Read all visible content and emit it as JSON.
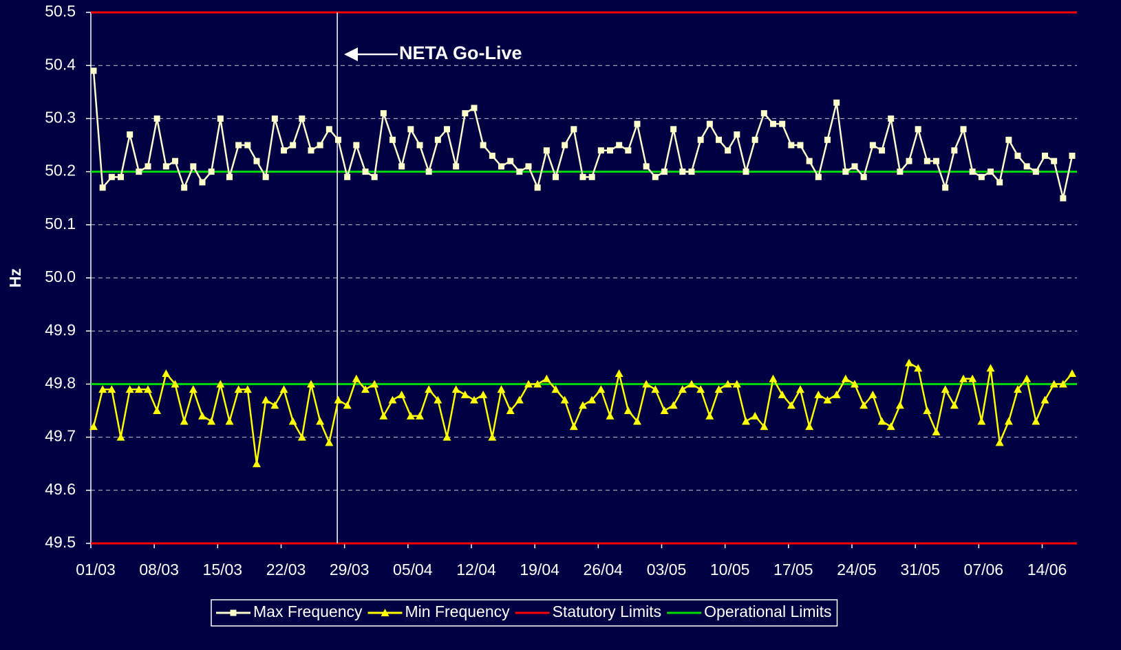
{
  "chart_data": {
    "type": "line",
    "ylabel": "Hz",
    "annotation": "NETA Go-Live",
    "categories": [
      "01/03",
      null,
      null,
      null,
      null,
      null,
      null,
      "08/03",
      null,
      null,
      null,
      null,
      null,
      null,
      "15/03",
      null,
      null,
      null,
      null,
      null,
      null,
      "22/03",
      null,
      null,
      null,
      null,
      null,
      null,
      "29/03",
      null,
      null,
      null,
      null,
      null,
      null,
      "05/04",
      null,
      null,
      null,
      null,
      null,
      null,
      "12/04",
      null,
      null,
      null,
      null,
      null,
      null,
      "19/04",
      null,
      null,
      null,
      null,
      null,
      null,
      "26/04",
      null,
      null,
      null,
      null,
      null,
      null,
      "03/05",
      null,
      null,
      null,
      null,
      null,
      null,
      "10/05",
      null,
      null,
      null,
      null,
      null,
      null,
      "17/05",
      null,
      null,
      null,
      null,
      null,
      null,
      "24/05",
      null,
      null,
      null,
      null,
      null,
      null,
      "31/05",
      null,
      null,
      null,
      null,
      null,
      null,
      "07/06",
      null,
      null,
      null,
      null,
      null,
      null,
      "14/06",
      null,
      null,
      null
    ],
    "series": [
      {
        "name": "Max Frequency",
        "color": "#ffffcc",
        "marker": "square",
        "values": [
          50.39,
          50.17,
          50.19,
          50.19,
          50.27,
          50.2,
          50.21,
          50.3,
          50.21,
          50.22,
          50.17,
          50.21,
          50.18,
          50.2,
          50.3,
          50.19,
          50.25,
          50.25,
          50.22,
          50.19,
          50.3,
          50.24,
          50.25,
          50.3,
          50.24,
          50.25,
          50.28,
          50.26,
          50.19,
          50.25,
          50.2,
          50.19,
          50.31,
          50.26,
          50.21,
          50.28,
          50.25,
          50.2,
          50.26,
          50.28,
          50.21,
          50.31,
          50.32,
          50.25,
          50.23,
          50.21,
          50.22,
          50.2,
          50.21,
          50.17,
          50.24,
          50.19,
          50.25,
          50.28,
          50.19,
          50.19,
          50.24,
          50.24,
          50.25,
          50.24,
          50.29,
          50.21,
          50.19,
          50.2,
          50.28,
          50.2,
          50.2,
          50.26,
          50.29,
          50.26,
          50.24,
          50.27,
          50.2,
          50.26,
          50.31,
          50.29,
          50.29,
          50.25,
          50.25,
          50.22,
          50.19,
          50.26,
          50.33,
          50.2,
          50.21,
          50.19,
          50.25,
          50.24,
          50.3,
          50.2,
          50.22,
          50.28,
          50.22,
          50.22,
          50.17,
          50.24,
          50.28,
          50.2,
          50.19,
          50.2,
          50.18,
          50.26,
          50.23,
          50.21,
          50.2,
          50.23,
          50.22,
          50.15,
          50.23
        ]
      },
      {
        "name": "Min Frequency",
        "color": "#ffff00",
        "marker": "triangle",
        "values": [
          49.72,
          49.79,
          49.79,
          49.7,
          49.79,
          49.79,
          49.79,
          49.75,
          49.82,
          49.8,
          49.73,
          49.79,
          49.74,
          49.73,
          49.8,
          49.73,
          49.79,
          49.79,
          49.65,
          49.77,
          49.76,
          49.79,
          49.73,
          49.7,
          49.8,
          49.73,
          49.69,
          49.77,
          49.76,
          49.81,
          49.79,
          49.8,
          49.74,
          49.77,
          49.78,
          49.74,
          49.74,
          49.79,
          49.77,
          49.7,
          49.79,
          49.78,
          49.77,
          49.78,
          49.7,
          49.79,
          49.75,
          49.77,
          49.8,
          49.8,
          49.81,
          49.79,
          49.77,
          49.72,
          49.76,
          49.77,
          49.79,
          49.74,
          49.82,
          49.75,
          49.73,
          49.8,
          49.79,
          49.75,
          49.76,
          49.79,
          49.8,
          49.79,
          49.74,
          49.79,
          49.8,
          49.8,
          49.73,
          49.74,
          49.72,
          49.81,
          49.78,
          49.76,
          49.79,
          49.72,
          49.78,
          49.77,
          49.78,
          49.81,
          49.8,
          49.76,
          49.78,
          49.73,
          49.72,
          49.76,
          49.84,
          49.83,
          49.75,
          49.71,
          49.79,
          49.76,
          49.81,
          49.81,
          49.73,
          49.83,
          49.69,
          49.73,
          49.79,
          49.81,
          49.73,
          49.77,
          49.8,
          49.8,
          49.82
        ]
      }
    ],
    "reference_lines": [
      {
        "name": "Statutory Limits",
        "color": "#ff0000",
        "values": [
          49.5,
          50.5
        ]
      },
      {
        "name": "Operational Limits",
        "color": "#00dd00",
        "values": [
          49.8,
          50.2
        ]
      }
    ],
    "ylim": [
      49.5,
      50.5
    ],
    "yticks": [
      49.5,
      49.6,
      49.7,
      49.8,
      49.9,
      {
        "value": 50,
        "label": "50.0"
      },
      50.1,
      50.2,
      50.3,
      50.4,
      50.5
    ],
    "grid": true,
    "legend": "bottom"
  }
}
